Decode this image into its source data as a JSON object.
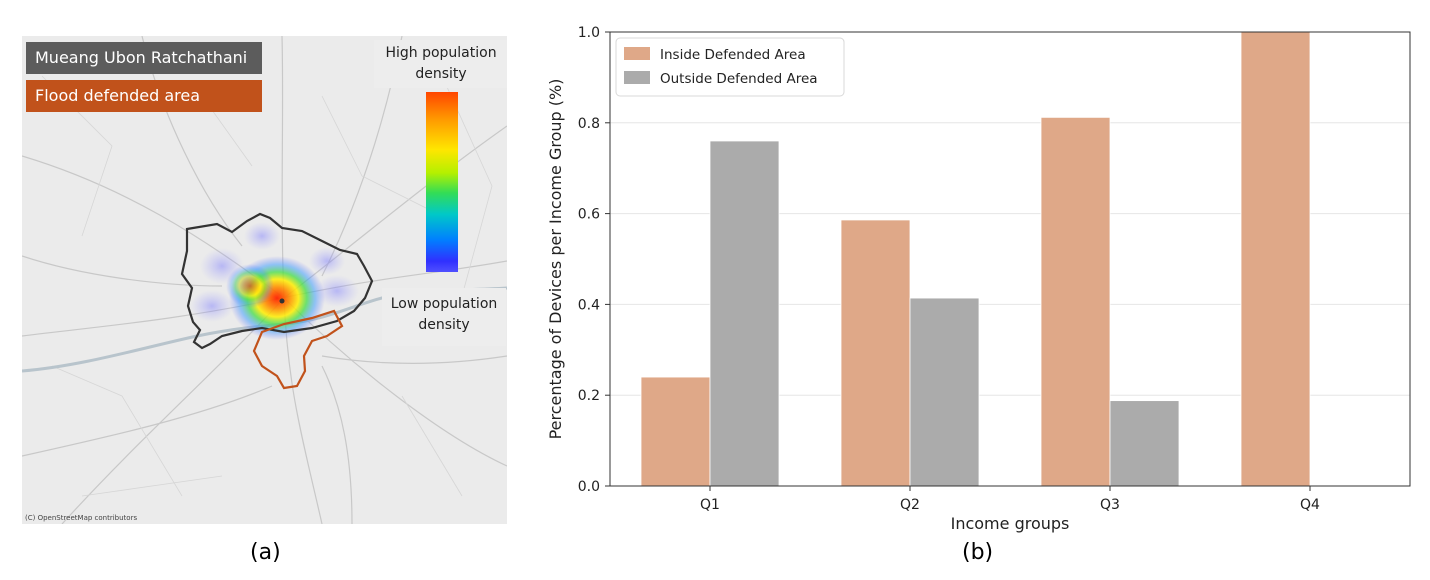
{
  "map": {
    "city_label": "Mueang Ubon Ratchathani",
    "flood_label": "Flood defended area",
    "high_label": "High population density",
    "low_label": "Low population density",
    "credit": "(C) OpenStreetMap contributors",
    "colors": {
      "city_boundary": "#333333",
      "flood_boundary": "#c1521b",
      "background": "#ebebeb"
    }
  },
  "captions": {
    "a": "(a)",
    "b": "(b)"
  },
  "chart_data": {
    "type": "bar",
    "title": "",
    "xlabel": "Income groups",
    "ylabel": "Percentage of Devices per Income Group (%)",
    "categories": [
      "Q1",
      "Q2",
      "Q3",
      "Q4"
    ],
    "ylim": [
      0,
      1.0
    ],
    "yticks": [
      "0.0",
      "0.2",
      "0.4",
      "0.6",
      "0.8",
      "1.0"
    ],
    "grid": true,
    "legend_position": "top-left",
    "series": [
      {
        "name": "Inside Defended Area",
        "color": "#dfa888",
        "values": [
          0.24,
          0.586,
          0.812,
          1.0
        ]
      },
      {
        "name": "Outside Defended Area",
        "color": "#ababab",
        "values": [
          0.76,
          0.414,
          0.188,
          0.0
        ]
      }
    ]
  }
}
